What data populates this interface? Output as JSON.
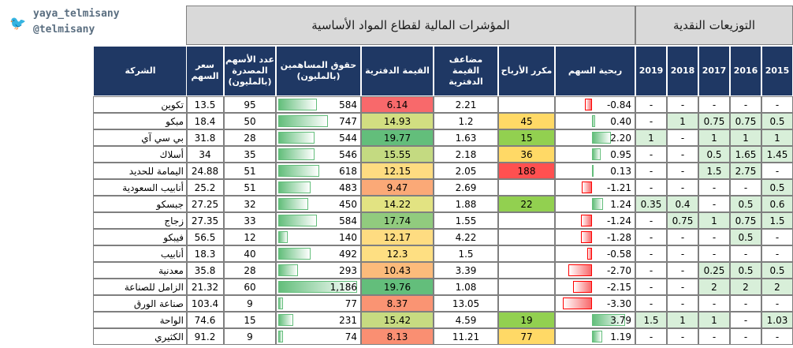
{
  "brand": {
    "handle_line1": "yaya_telmisany",
    "handle_line2": "@telmisany",
    "icon": "twitter-bird-icon"
  },
  "titles": {
    "main": "المؤشرات المالية لقطاع المواد الأساسية",
    "dividends": "التوزيعات النقدية"
  },
  "headers": {
    "company": "الشركة",
    "price": "سعر السهم",
    "shares": "عدد الأسهم المصدرة (بالمليون)",
    "equity": "حقوق المساهمين (بالمليون)",
    "book_value": "القيمة الدفترية",
    "pb": "مضاعف القيمة الدفترية",
    "pe": "مكرر الأرباح",
    "eps": "ربحية السهم",
    "years": [
      "2019",
      "2018",
      "2017",
      "2016",
      "2015"
    ]
  },
  "colors": {
    "header_bg": "#1f3864",
    "dividend_fill": "#d8efd9",
    "bar_green": "#63be7b",
    "bar_red": "#f8696b",
    "pe_low": "#92d050",
    "pe_mid": "#ffd966",
    "pe_high": "#ff5050"
  },
  "rows": [
    {
      "company": "تكوين",
      "price": "13.5",
      "shares": "95",
      "equity": "584",
      "equity_num": 584,
      "bv": "6.14",
      "bv_num": 6.14,
      "pb": "2.21",
      "pe": "",
      "pe_level": "",
      "eps": "-0.84",
      "eps_num": -0.84,
      "div": [
        "-",
        "-",
        "-",
        "-",
        "-"
      ]
    },
    {
      "company": "مبكو",
      "price": "18.4",
      "shares": "50",
      "equity": "747",
      "equity_num": 747,
      "bv": "14.93",
      "bv_num": 14.93,
      "pb": "1.2",
      "pe": "45",
      "pe_level": "mid",
      "eps": "0.40",
      "eps_num": 0.4,
      "div": [
        "-",
        "1",
        "0.75",
        "0.75",
        "0.5"
      ]
    },
    {
      "company": "بي سي آي",
      "price": "31.8",
      "shares": "28",
      "equity": "544",
      "equity_num": 544,
      "bv": "19.77",
      "bv_num": 19.77,
      "pb": "1.63",
      "pe": "15",
      "pe_level": "low",
      "eps": "2.20",
      "eps_num": 2.2,
      "div": [
        "1",
        "-",
        "1",
        "1",
        "1"
      ]
    },
    {
      "company": "أسلاك",
      "price": "34",
      "shares": "35",
      "equity": "546",
      "equity_num": 546,
      "bv": "15.55",
      "bv_num": 15.55,
      "pb": "2.18",
      "pe": "36",
      "pe_level": "mid",
      "eps": "0.95",
      "eps_num": 0.95,
      "div": [
        "-",
        "-",
        "0.5",
        "1.65",
        "1.45"
      ]
    },
    {
      "company": "اليمامة للحديد",
      "price": "24.88",
      "shares": "51",
      "equity": "618",
      "equity_num": 618,
      "bv": "12.15",
      "bv_num": 12.15,
      "pb": "2.05",
      "pe": "188",
      "pe_level": "high",
      "eps": "0.13",
      "eps_num": 0.13,
      "div": [
        "-",
        "-",
        "1.5",
        "2.75",
        "-"
      ]
    },
    {
      "company": "أنابيب السعودية",
      "price": "25.2",
      "shares": "51",
      "equity": "483",
      "equity_num": 483,
      "bv": "9.47",
      "bv_num": 9.47,
      "pb": "2.69",
      "pe": "",
      "pe_level": "",
      "eps": "-1.21",
      "eps_num": -1.21,
      "div": [
        "-",
        "-",
        "-",
        "-",
        "0.5"
      ]
    },
    {
      "company": "جبسكو",
      "price": "27.25",
      "shares": "32",
      "equity": "450",
      "equity_num": 450,
      "bv": "14.22",
      "bv_num": 14.22,
      "pb": "1.88",
      "pe": "22",
      "pe_level": "low",
      "eps": "1.24",
      "eps_num": 1.24,
      "div": [
        "0.35",
        "0.4",
        "-",
        "0.5",
        "0.6"
      ]
    },
    {
      "company": "زجاج",
      "price": "27.35",
      "shares": "33",
      "equity": "584",
      "equity_num": 584,
      "bv": "17.74",
      "bv_num": 17.74,
      "pb": "1.55",
      "pe": "",
      "pe_level": "",
      "eps": "-1.24",
      "eps_num": -1.24,
      "div": [
        "-",
        "0.75",
        "1",
        "0.75",
        "1.5"
      ]
    },
    {
      "company": "فيبكو",
      "price": "56.5",
      "shares": "12",
      "equity": "140",
      "equity_num": 140,
      "bv": "12.17",
      "bv_num": 12.17,
      "pb": "4.22",
      "pe": "",
      "pe_level": "",
      "eps": "-1.28",
      "eps_num": -1.28,
      "div": [
        "-",
        "-",
        "-",
        "0.5",
        "-"
      ]
    },
    {
      "company": "أنابيب",
      "price": "18.3",
      "shares": "40",
      "equity": "492",
      "equity_num": 492,
      "bv": "12.3",
      "bv_num": 12.3,
      "pb": "1.5",
      "pe": "",
      "pe_level": "",
      "eps": "-0.58",
      "eps_num": -0.58,
      "div": [
        "-",
        "-",
        "-",
        "-",
        "-"
      ]
    },
    {
      "company": "معدنية",
      "price": "35.8",
      "shares": "28",
      "equity": "293",
      "equity_num": 293,
      "bv": "10.43",
      "bv_num": 10.43,
      "pb": "3.39",
      "pe": "",
      "pe_level": "",
      "eps": "-2.70",
      "eps_num": -2.7,
      "div": [
        "-",
        "-",
        "0.25",
        "0.5",
        "0.5"
      ]
    },
    {
      "company": "الزامل للصناعة",
      "price": "21.32",
      "shares": "60",
      "equity": "1,186",
      "equity_num": 1186,
      "bv": "19.76",
      "bv_num": 19.76,
      "pb": "1.08",
      "pe": "",
      "pe_level": "",
      "eps": "-2.15",
      "eps_num": -2.15,
      "div": [
        "-",
        "-",
        "2",
        "2",
        "2"
      ]
    },
    {
      "company": "صناعة الورق",
      "price": "103.4",
      "shares": "9",
      "equity": "77",
      "equity_num": 77,
      "bv": "8.37",
      "bv_num": 8.37,
      "pb": "13.05",
      "pe": "",
      "pe_level": "",
      "eps": "-3.30",
      "eps_num": -3.3,
      "div": [
        "-",
        "-",
        "-",
        "-",
        "-"
      ]
    },
    {
      "company": "الواحة",
      "price": "74.6",
      "shares": "15",
      "equity": "231",
      "equity_num": 231,
      "bv": "15.42",
      "bv_num": 15.42,
      "pb": "4.59",
      "pe": "19",
      "pe_level": "low",
      "eps": "3.79",
      "eps_num": 3.79,
      "div": [
        "1.5",
        "1",
        "1",
        "-",
        "1.03"
      ]
    },
    {
      "company": "الكثيري",
      "price": "91.2",
      "shares": "9",
      "equity": "74",
      "equity_num": 74,
      "bv": "8.13",
      "bv_num": 8.13,
      "pb": "11.21",
      "pe": "77",
      "pe_level": "mid",
      "eps": "1.19",
      "eps_num": 1.19,
      "div": [
        "-",
        "-",
        "-",
        "-",
        "-"
      ]
    }
  ]
}
